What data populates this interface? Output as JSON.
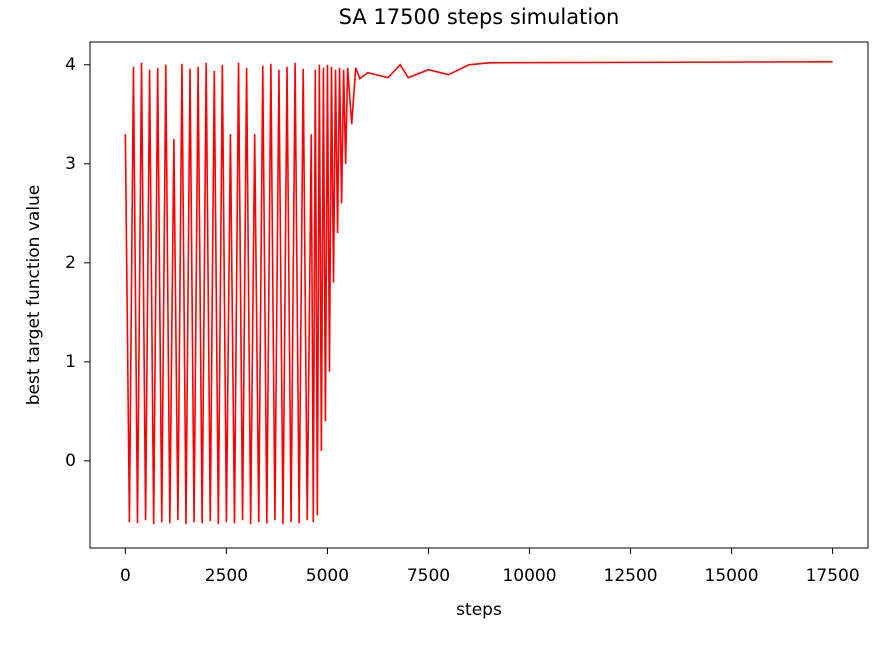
{
  "chart_data": {
    "type": "line",
    "title": "SA 17500 steps simulation",
    "xlabel": "steps",
    "ylabel": "best target function value",
    "x": [
      0,
      100,
      200,
      300,
      400,
      500,
      600,
      700,
      800,
      900,
      1000,
      1100,
      1200,
      1300,
      1400,
      1500,
      1600,
      1700,
      1800,
      1900,
      2000,
      2100,
      2200,
      2300,
      2400,
      2500,
      2600,
      2700,
      2800,
      2900,
      3000,
      3100,
      3200,
      3300,
      3400,
      3500,
      3600,
      3700,
      3800,
      3900,
      4000,
      4100,
      4200,
      4300,
      4400,
      4500,
      4600,
      4650,
      4700,
      4750,
      4800,
      4850,
      4900,
      4950,
      5000,
      5050,
      5100,
      5150,
      5200,
      5250,
      5300,
      5350,
      5400,
      5450,
      5500,
      5600,
      5700,
      5800,
      6000,
      6500,
      6800,
      7000,
      7500,
      8000,
      8500,
      9000,
      17500
    ],
    "series": [
      {
        "color": "#ff0000",
        "values": [
          3.3,
          -0.62,
          3.98,
          -0.63,
          4.02,
          -0.6,
          3.95,
          -0.64,
          3.97,
          -0.62,
          4.0,
          -0.63,
          3.25,
          -0.6,
          4.01,
          -0.64,
          3.96,
          -0.62,
          3.98,
          -0.63,
          4.02,
          -0.61,
          3.94,
          -0.64,
          4.0,
          -0.62,
          3.3,
          -0.63,
          4.02,
          -0.6,
          3.97,
          -0.64,
          3.3,
          -0.62,
          3.99,
          -0.63,
          4.01,
          -0.6,
          3.95,
          -0.64,
          3.98,
          -0.62,
          4.02,
          -0.63,
          3.96,
          -0.6,
          3.3,
          -0.62,
          3.95,
          -0.55,
          4.0,
          0.1,
          3.97,
          0.4,
          4.0,
          0.9,
          3.98,
          1.8,
          3.95,
          2.3,
          3.97,
          2.6,
          3.95,
          3.0,
          3.97,
          3.4,
          3.97,
          3.86,
          3.92,
          3.87,
          4.0,
          3.87,
          3.95,
          3.9,
          4.0,
          4.02,
          4.03
        ]
      }
    ],
    "xlim": [
      -875,
      18375
    ],
    "ylim": [
      -0.88,
      4.23
    ],
    "xticks": [
      0,
      2500,
      5000,
      7500,
      10000,
      12500,
      15000,
      17500
    ],
    "yticks": [
      0,
      1,
      2,
      3,
      4
    ]
  }
}
